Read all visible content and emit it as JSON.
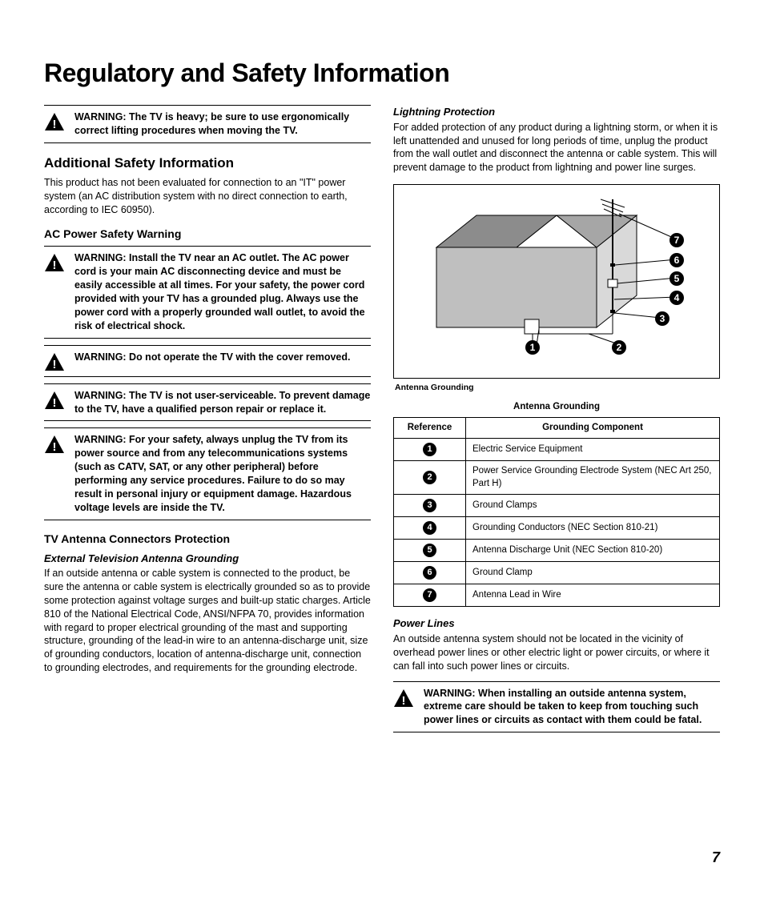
{
  "page": {
    "title": "Regulatory and Safety Information",
    "number": "7"
  },
  "left": {
    "warn_lift": "WARNING: The TV is heavy; be sure to use ergonomically correct lifting procedures when moving the TV.",
    "h2_additional": "Additional Safety Information",
    "p_additional": "This product has not been evaluated for connection to an \"IT\" power system (an AC distribution system with no direct connection to earth, according to IEC 60950).",
    "h3_ac": "AC Power Safety Warning",
    "warn_ac_outlet": "WARNING: Install the TV near an AC outlet. The AC power cord is your main AC disconnecting device and must be easily accessible at all times. For your safety, the power cord provided with your TV has a grounded plug. Always use the power cord with a properly grounded wall outlet, to avoid the risk of electrical shock.",
    "warn_cover": "WARNING: Do not operate the TV with the cover removed.",
    "warn_service": "WARNING: The TV is not user-serviceable. To prevent damage to the TV, have a qualified person repair or replace it.",
    "warn_unplug": "WARNING: For your safety, always unplug the TV from its power source and from any telecommunications systems (such as CATV, SAT, or any other peripheral) before performing any service procedures. Failure to do so may result in personal injury or equipment damage. Hazardous voltage levels are inside the TV.",
    "h3_antenna": "TV Antenna Connectors Protection",
    "h4_ext_ground": "External Television Antenna Grounding",
    "p_antenna": "If an outside antenna or cable system is connected to the product, be sure the antenna or cable system is electrically grounded so as to provide some protection against voltage surges and built-up static charges. Article 810 of the National Electrical Code, ANSI/NFPA 70, provides information with regard to proper electrical grounding of the mast and supporting structure, grounding of the lead-in wire to an antenna-discharge unit, size of grounding conductors, location of antenna-discharge unit, connection to grounding electrodes, and requirements for the grounding electrode."
  },
  "right": {
    "h4_lightning": "Lightning Protection",
    "p_lightning": "For added protection of any product during a lightning storm, or when it is left unattended and unused for long periods of time, unplug the product from the wall outlet and disconnect the antenna or cable system. This will prevent damage to the product from lightning and power line surges.",
    "figure_caption": "Antenna Grounding",
    "table": {
      "caption": "Antenna Grounding",
      "col_ref": "Reference",
      "col_comp": "Grounding Component",
      "rows": [
        {
          "ref": "1",
          "comp": "Electric Service Equipment"
        },
        {
          "ref": "2",
          "comp": "Power Service Grounding Electrode System (NEC Art 250, Part H)"
        },
        {
          "ref": "3",
          "comp": "Ground Clamps"
        },
        {
          "ref": "4",
          "comp": "Grounding Conductors (NEC Section 810-21)"
        },
        {
          "ref": "5",
          "comp": "Antenna Discharge Unit (NEC Section 810-20)"
        },
        {
          "ref": "6",
          "comp": "Ground Clamp"
        },
        {
          "ref": "7",
          "comp": "Antenna Lead in Wire"
        }
      ]
    },
    "h4_power": "Power Lines",
    "p_power": "An outside antenna system should not be located in the vicinity of overhead power lines or other electric light or power circuits, or where it can fall into such power lines or circuits.",
    "warn_power": "WARNING: When installing an outside antenna system, extreme care should be taken to keep from touching such power lines or circuits as contact with them could be fatal."
  },
  "callouts": [
    "1",
    "2",
    "3",
    "4",
    "5",
    "6",
    "7"
  ],
  "colors": {
    "text": "#000000",
    "background": "#ffffff",
    "border": "#000000",
    "icon_fill": "#000000"
  }
}
